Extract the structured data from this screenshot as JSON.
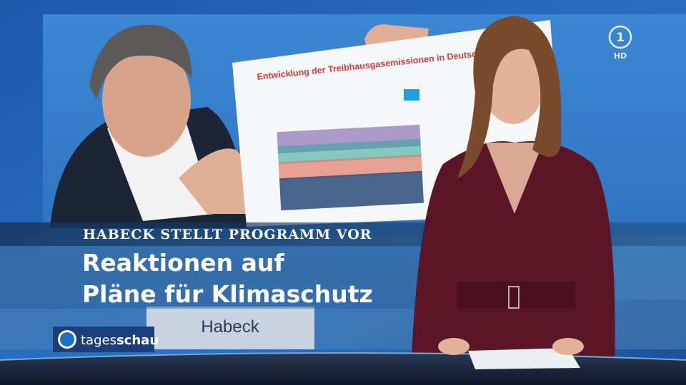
{
  "overlay": {
    "kicker": "HABECK STELLT PROGRAMM VOR",
    "headline": [
      "Reaktionen auf",
      "Pläne für Klimaschutz"
    ]
  },
  "inset": {
    "poster_title": "Entwicklung der Treibhausgasemissionen in Deutschland",
    "nameplate": "Habeck"
  },
  "branding": {
    "logo_light": "tages",
    "logo_bold": "schau",
    "channel_number": "1",
    "channel_badge": "HD"
  }
}
